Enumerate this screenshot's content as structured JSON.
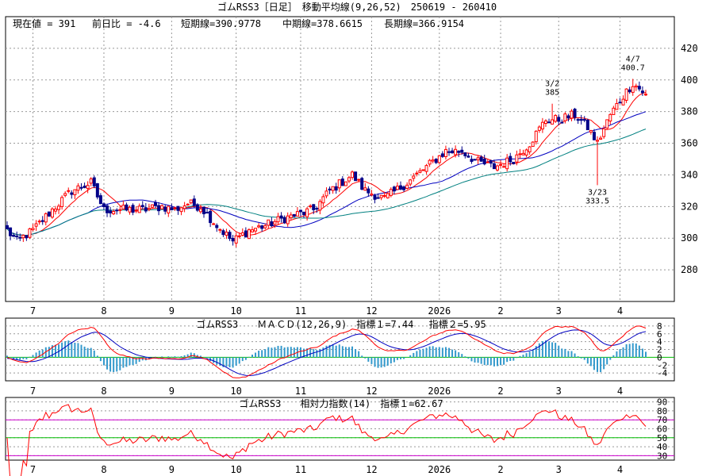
{
  "title": "ゴムRSS3［日足］　移動平均線(9,26,52)　250619 - 260410",
  "legend": {
    "current": "現在値 = 391",
    "change": "前日比 = -4.6",
    "short_ma": "短期線=390.9778",
    "mid_ma": "中期線=378.6615",
    "long_ma": "長期線=366.9154"
  },
  "colors": {
    "up": "#ff0000",
    "down": "#000088",
    "short_ma": "#ff0000",
    "mid_ma": "#0000c0",
    "long_ma": "#008080",
    "histogram": "#3399cc",
    "zero_line": "#00bb00",
    "rsi_band": "#cc00cc",
    "rsi_mid": "#00bb00"
  },
  "month_labels": [
    "7",
    "8",
    "9",
    "10",
    "11",
    "12",
    "2026",
    "2",
    "3",
    "4"
  ],
  "month_positions_bar": [
    8,
    30,
    51,
    71,
    91,
    113,
    134,
    153,
    171,
    190
  ],
  "annotations": [
    {
      "label": "3/2",
      "value": "385",
      "bar": 169
    },
    {
      "label": "3/23",
      "value": "333.5",
      "bar": 183
    },
    {
      "label": "4/7",
      "value": "400.7",
      "bar": 194
    }
  ],
  "macd_title": "ゴムRSS3　　ＭＡＣＤ(12,26,9)　指標１=7.44　 指標２=5.95",
  "rsi_title": "ゴムRSS3　　相対力指数(14)　指標１=62.67",
  "chart_data": [
    {
      "type": "candlestick",
      "ylim": [
        260,
        440
      ],
      "yticks": [
        280,
        300,
        320,
        340,
        360,
        380,
        400,
        420
      ],
      "grid": true,
      "close_knots": [
        [
          0,
          305
        ],
        [
          3,
          298
        ],
        [
          8,
          305
        ],
        [
          14,
          318
        ],
        [
          20,
          330
        ],
        [
          26,
          335
        ],
        [
          30,
          318
        ],
        [
          35,
          318
        ],
        [
          42,
          318
        ],
        [
          48,
          320
        ],
        [
          52,
          318
        ],
        [
          56,
          322
        ],
        [
          60,
          320
        ],
        [
          65,
          308
        ],
        [
          70,
          298
        ],
        [
          75,
          305
        ],
        [
          80,
          308
        ],
        [
          85,
          312
        ],
        [
          90,
          315
        ],
        [
          95,
          318
        ],
        [
          100,
          330
        ],
        [
          107,
          340
        ],
        [
          111,
          330
        ],
        [
          117,
          325
        ],
        [
          124,
          335
        ],
        [
          130,
          345
        ],
        [
          136,
          355
        ],
        [
          141,
          355
        ],
        [
          146,
          348
        ],
        [
          151,
          345
        ],
        [
          157,
          350
        ],
        [
          162,
          360
        ],
        [
          167,
          375
        ],
        [
          171,
          375
        ],
        [
          176,
          378
        ],
        [
          180,
          370
        ],
        [
          183,
          360
        ],
        [
          187,
          378
        ],
        [
          191,
          390
        ],
        [
          194,
          398
        ],
        [
          198,
          391
        ]
      ],
      "n_bars": 199,
      "last_close": 391
    },
    {
      "type": "line",
      "name": "MACD(12,26,9)",
      "ylim": [
        -6,
        10
      ],
      "yticks": [
        8,
        6,
        4,
        2,
        0,
        -2,
        -4
      ],
      "macd_last": 7.44,
      "signal_last": 5.95
    },
    {
      "type": "line",
      "name": "相対力指数(14)",
      "ylim": [
        25,
        95
      ],
      "yticks": [
        90,
        80,
        70,
        60,
        50,
        40,
        30
      ],
      "bands": [
        30,
        50,
        70
      ],
      "rsi_last": 62.67
    }
  ]
}
